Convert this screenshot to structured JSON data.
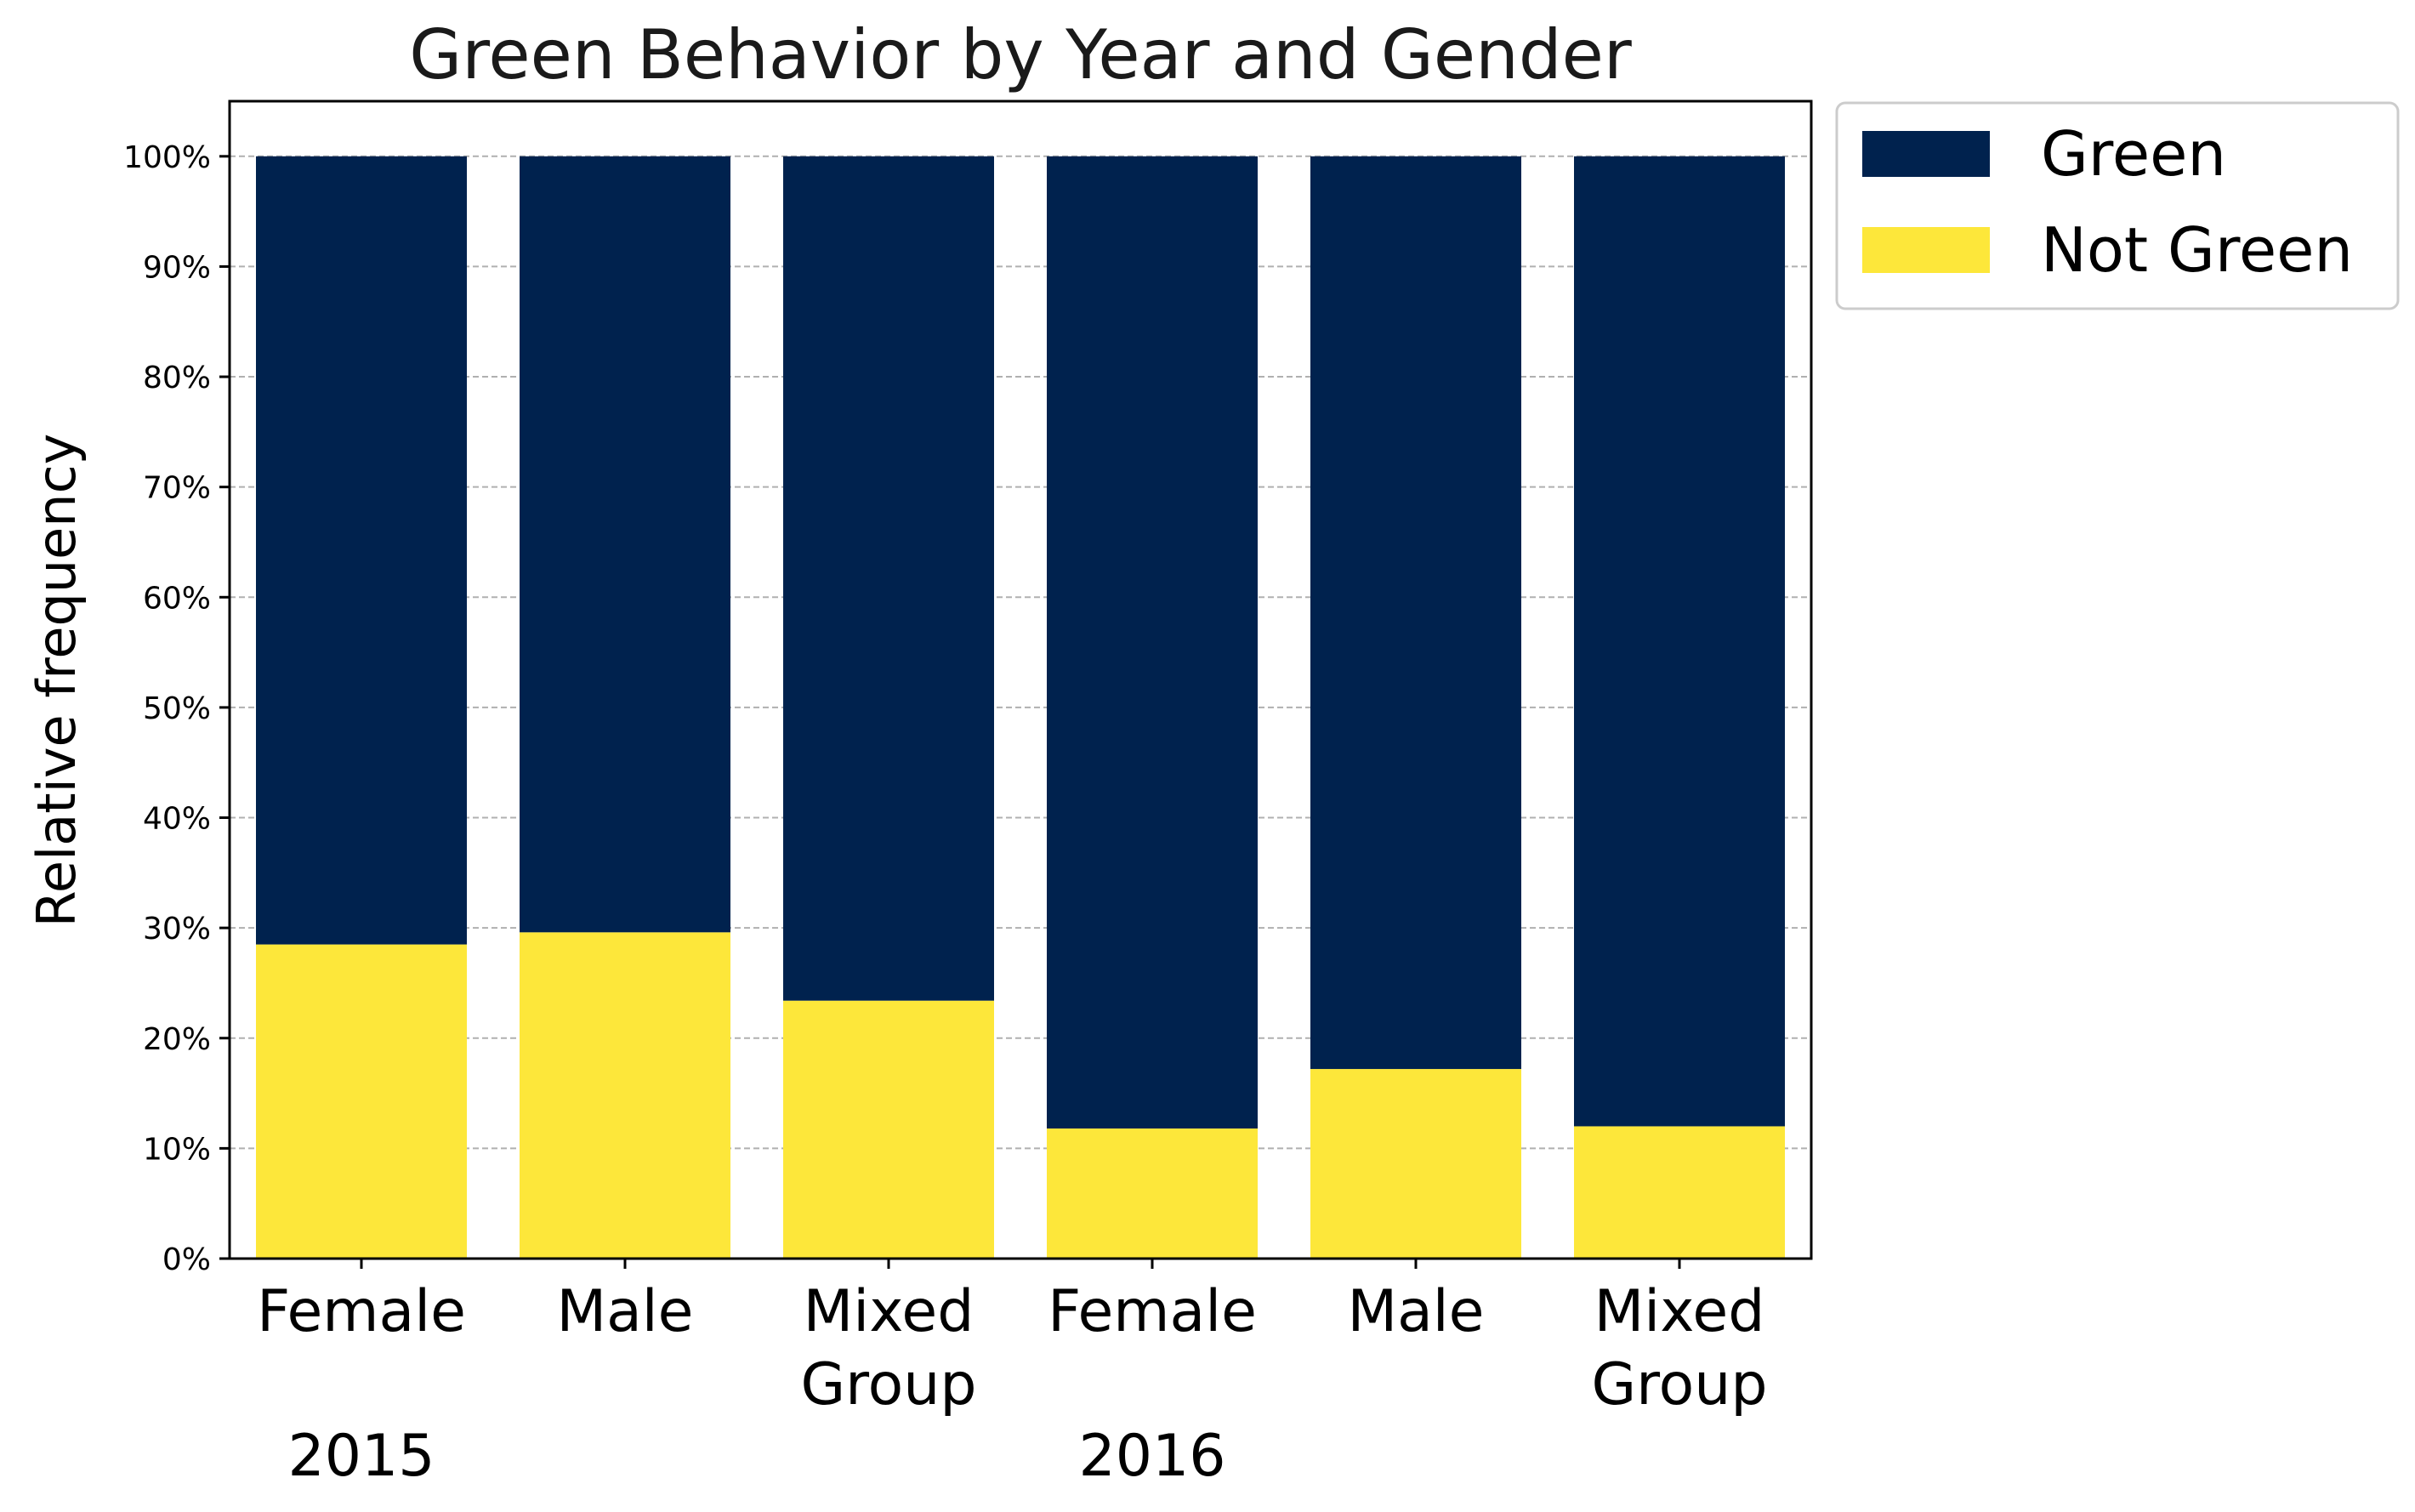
{
  "chart_data": {
    "type": "bar",
    "stacked": true,
    "title": "Green Behavior by Year and Gender",
    "xlabel": "",
    "ylabel": "Relative frequency",
    "ylim": [
      0,
      105
    ],
    "yticks": [
      0,
      10,
      20,
      30,
      40,
      50,
      60,
      70,
      80,
      90,
      100
    ],
    "ytick_labels": [
      "0%",
      "10%",
      "20%",
      "30%",
      "40%",
      "50%",
      "60%",
      "70%",
      "80%",
      "90%",
      "100%"
    ],
    "grid": "horizontal dashed",
    "categories": [
      [
        "Female"
      ],
      [
        "Male"
      ],
      [
        "Mixed",
        "Group"
      ],
      [
        "Female"
      ],
      [
        "Male"
      ],
      [
        "Mixed",
        "Group"
      ]
    ],
    "groups": [
      {
        "label": "2015",
        "categories": [
          0,
          1,
          2
        ]
      },
      {
        "label": "2016",
        "categories": [
          3,
          4,
          5
        ]
      }
    ],
    "series": [
      {
        "name": "Not Green",
        "color": "#fde73a",
        "values": [
          28.5,
          29.6,
          23.4,
          11.8,
          17.2,
          12.0
        ]
      },
      {
        "name": "Green",
        "color": "#00224e",
        "values": [
          71.5,
          70.4,
          76.6,
          88.2,
          82.8,
          88.0
        ]
      }
    ],
    "legend": {
      "placement": "outside top-right",
      "entries": [
        {
          "name": "Green",
          "color": "#00224e"
        },
        {
          "name": "Not Green",
          "color": "#fde73a"
        }
      ]
    }
  }
}
